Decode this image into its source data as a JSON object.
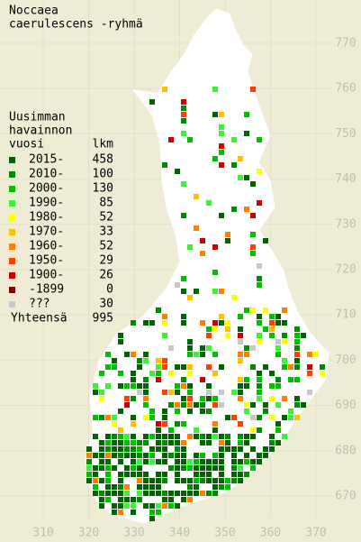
{
  "title": [
    "Noccaea",
    "caerulescens -ryhmä"
  ],
  "legend": {
    "header": [
      "Uusimman",
      "havainnon",
      "vuosi"
    ],
    "count_header": "lkm",
    "rows": [
      {
        "label": "2015-",
        "count": 458,
        "color": "#006400"
      },
      {
        "label": "2010-",
        "count": 100,
        "color": "#008c00"
      },
      {
        "label": "2000-",
        "count": 130,
        "color": "#00c000"
      },
      {
        "label": "1990-",
        "count": 85,
        "color": "#3cf03c"
      },
      {
        "label": "1980-",
        "count": 52,
        "color": "#ffff00"
      },
      {
        "label": "1970-",
        "count": 33,
        "color": "#ffc000"
      },
      {
        "label": "1960-",
        "count": 52,
        "color": "#ff8000"
      },
      {
        "label": "1950-",
        "count": 29,
        "color": "#ff4000"
      },
      {
        "label": "1900-",
        "count": 26,
        "color": "#d00000"
      },
      {
        "label": "-1899",
        "count": 0,
        "color": "#800000"
      },
      {
        "label": "???",
        "count": 30,
        "color": "#c8c8c8"
      }
    ],
    "total_label": "Yhteensä",
    "total": 995
  },
  "x_ticks": [
    310,
    320,
    330,
    340,
    350,
    360,
    370
  ],
  "y_ticks": [
    670,
    680,
    690,
    700,
    710,
    720,
    730,
    740,
    750,
    760,
    770
  ]
}
